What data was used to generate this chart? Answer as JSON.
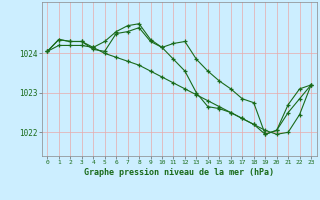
{
  "title": "Graphe pression niveau de la mer (hPa)",
  "ylabel_ticks": [
    1022,
    1023,
    1024
  ],
  "ylim": [
    1021.4,
    1025.3
  ],
  "xlim": [
    -0.5,
    23.5
  ],
  "xticks": [
    0,
    1,
    2,
    3,
    4,
    5,
    6,
    7,
    8,
    9,
    10,
    11,
    12,
    13,
    14,
    15,
    16,
    17,
    18,
    19,
    20,
    21,
    22,
    23
  ],
  "bg_color": "#cceeff",
  "grid_color": "#e8aaaa",
  "line_color": "#1a6b1a",
  "series": [
    [
      1024.05,
      1024.35,
      1024.3,
      1024.3,
      1024.1,
      1024.05,
      1024.5,
      1024.55,
      1024.65,
      1024.3,
      1024.15,
      1024.25,
      1024.3,
      1023.85,
      1023.55,
      1023.3,
      1023.1,
      1022.85,
      1022.75,
      1021.95,
      1022.05,
      1022.7,
      1023.1,
      1023.2
    ],
    [
      1024.05,
      1024.2,
      1024.2,
      1024.2,
      1024.15,
      1024.0,
      1023.9,
      1023.8,
      1023.7,
      1023.55,
      1023.4,
      1023.25,
      1023.1,
      1022.95,
      1022.8,
      1022.65,
      1022.5,
      1022.35,
      1022.2,
      1022.05,
      1021.95,
      1022.0,
      1022.45,
      1023.2
    ],
    [
      1024.05,
      1024.35,
      1024.3,
      1024.3,
      1024.15,
      1024.3,
      1024.55,
      1024.7,
      1024.75,
      1024.35,
      1024.15,
      1023.85,
      1023.55,
      1023.0,
      1022.65,
      1022.6,
      1022.5,
      1022.35,
      1022.2,
      1021.95,
      1022.05,
      1022.5,
      1022.85,
      1023.2
    ]
  ]
}
